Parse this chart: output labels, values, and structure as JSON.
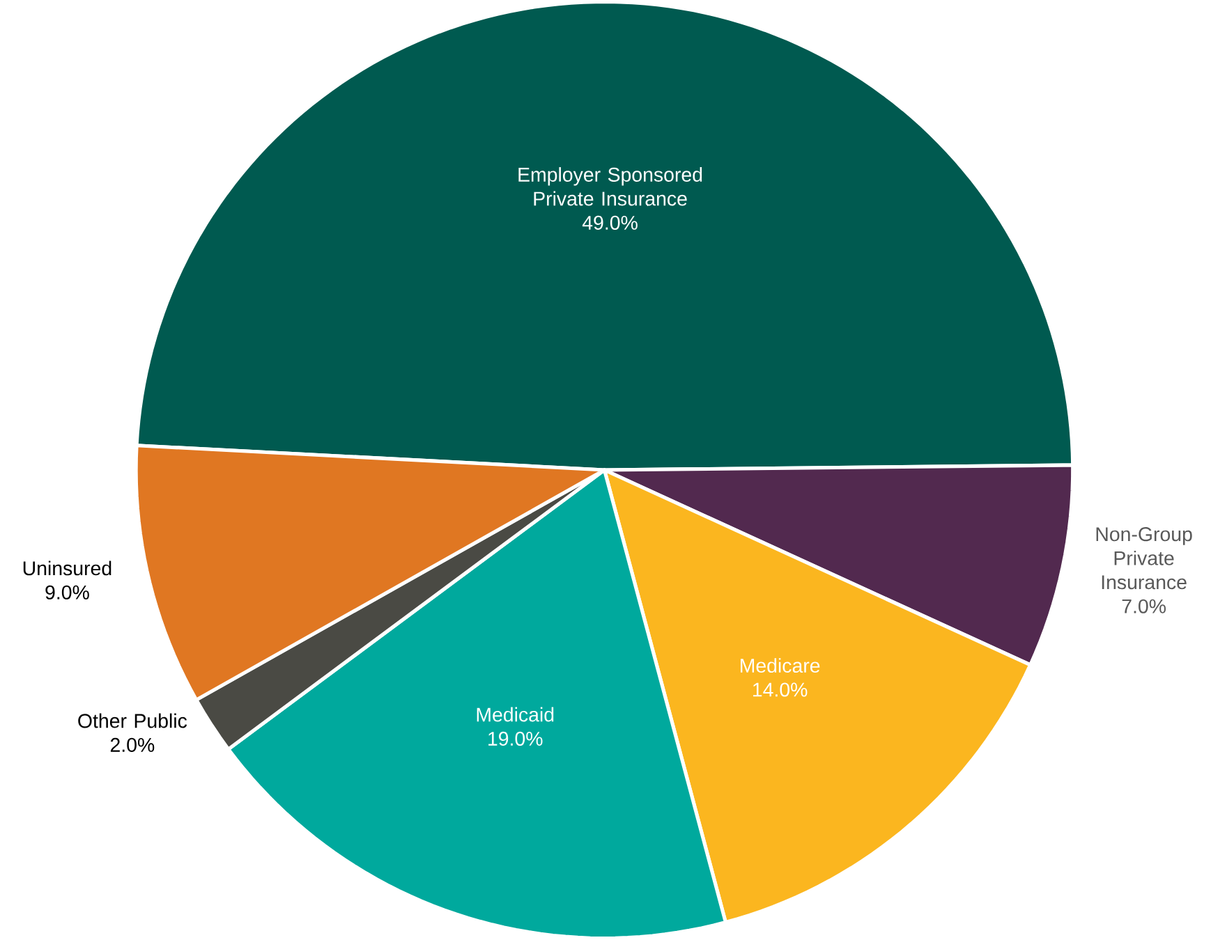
{
  "chart_data": {
    "type": "pie",
    "categories": [
      "Employer Sponsored Private Insurance",
      "Non-Group Private Insurance",
      "Medicare",
      "Medicaid",
      "Other Public",
      "Uninsured"
    ],
    "values": [
      49,
      7,
      14,
      19,
      2,
      9
    ],
    "value_labels": [
      "49.0%",
      "7.0%",
      "14.0%",
      "19.0%",
      "2.0%",
      "9.0%"
    ],
    "colors": [
      "#005a50",
      "#52294f",
      "#fbb61f",
      "#00a99d",
      "#4a4a44",
      "#e07722"
    ]
  }
}
